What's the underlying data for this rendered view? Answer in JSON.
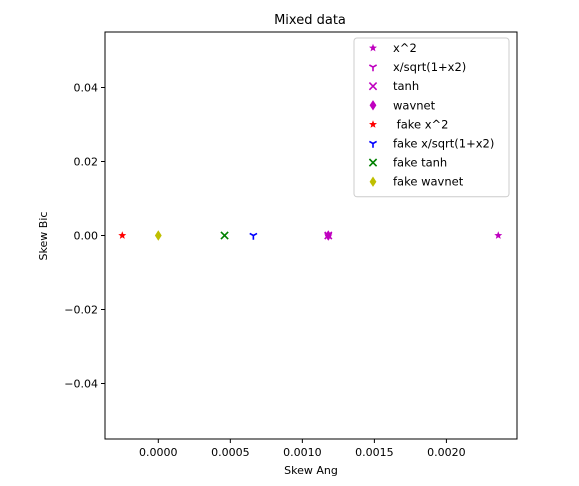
{
  "chart_data": {
    "type": "scatter",
    "title": "Mixed data",
    "xlabel": "Skew Ang",
    "ylabel": "Skew Bic",
    "xlim": [
      -0.00037,
      0.00249
    ],
    "ylim": [
      -0.055,
      0.055
    ],
    "xticks": [
      {
        "value": 0.0,
        "label": "0.0000"
      },
      {
        "value": 0.0005,
        "label": "0.0005"
      },
      {
        "value": 0.001,
        "label": "0.0010"
      },
      {
        "value": 0.0015,
        "label": "0.0015"
      },
      {
        "value": 0.002,
        "label": "0.0020"
      }
    ],
    "yticks": [
      {
        "value": 0.04,
        "label": "0.04"
      },
      {
        "value": 0.02,
        "label": "0.02"
      },
      {
        "value": 0.0,
        "label": "0.00"
      },
      {
        "value": -0.02,
        "label": "−0.02"
      },
      {
        "value": -0.04,
        "label": "−0.04"
      }
    ],
    "grid": false,
    "legend_position": "top-right",
    "series": [
      {
        "name": "x^2",
        "marker": "star",
        "color": "#bf00bf",
        "points": [
          [
            0.00236,
            0.0
          ]
        ]
      },
      {
        "name": "x/sqrt(1+x2)",
        "marker": "tri-down",
        "color": "#bf00bf",
        "points": [
          [
            0.00118,
            0.0
          ]
        ]
      },
      {
        "name": "tanh",
        "marker": "x",
        "color": "#bf00bf",
        "points": [
          [
            0.00118,
            0.0
          ]
        ]
      },
      {
        "name": "wavnet",
        "marker": "thin-diamond",
        "color": "#bf00bf",
        "points": [
          [
            0.00118,
            0.0
          ]
        ]
      },
      {
        "name": " fake x^2",
        "marker": "star",
        "color": "#ff0000",
        "points": [
          [
            -0.00025,
            0.0
          ]
        ]
      },
      {
        "name": "fake x/sqrt(1+x2)",
        "marker": "tri-down",
        "color": "#0000ff",
        "points": [
          [
            0.00066,
            0.0
          ]
        ]
      },
      {
        "name": "fake tanh",
        "marker": "x",
        "color": "#008000",
        "points": [
          [
            0.00046,
            0.0
          ]
        ]
      },
      {
        "name": "fake wavnet",
        "marker": "thin-diamond",
        "color": "#bfbf00",
        "points": [
          [
            0.0,
            0.0
          ]
        ]
      }
    ]
  }
}
